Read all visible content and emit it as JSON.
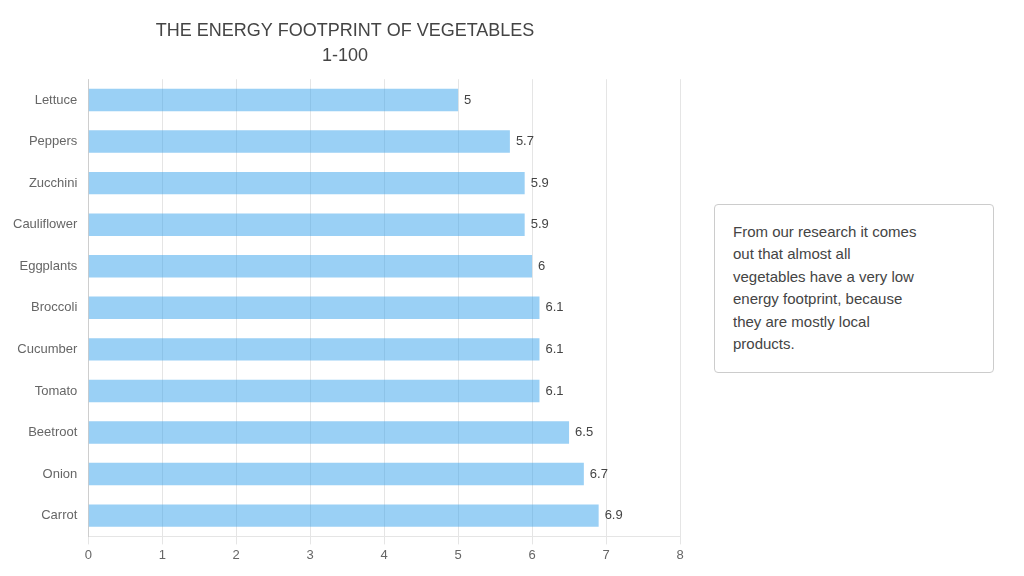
{
  "chart_data": {
    "type": "bar",
    "orientation": "horizontal",
    "title": "THE ENERGY FOOTPRINT OF VEGETABLES",
    "subtitle": "1-100",
    "categories": [
      "Carrot",
      "Onion",
      "Beetroot",
      "Tomato",
      "Cucumber",
      "Broccoli",
      "Eggplants",
      "Cauliflower",
      "Zucchini",
      "Peppers",
      "Lettuce"
    ],
    "values": [
      6.9,
      6.7,
      6.5,
      6.1,
      6.1,
      6.1,
      6.0,
      5.9,
      5.9,
      5.7,
      5.0
    ],
    "xlim": [
      0,
      8
    ],
    "xticks": [
      0,
      1,
      2,
      3,
      4,
      5,
      6,
      7,
      8
    ],
    "grid": true,
    "data_labels": true,
    "annotation": "From our research it comes\nout that almost all\nvegetables have a very low\nenergy footprint, because\nthey are mostly local\nproducts."
  }
}
